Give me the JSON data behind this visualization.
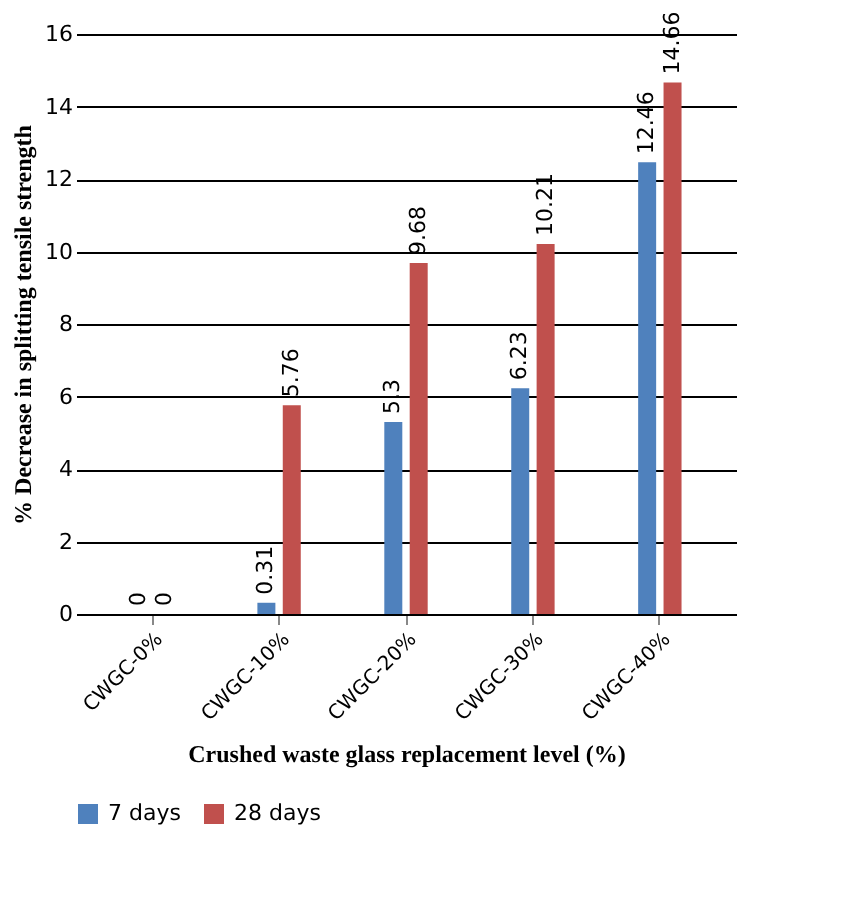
{
  "chart_data": {
    "type": "bar",
    "xlabel": "Crushed waste glass replacement level (%)",
    "ylabel": "% Decrease in splitting tensile strength",
    "categories": [
      "CWGC-0%",
      "CWGC-10%",
      "CWGC-20%",
      "CWGC-30%",
      "CWGC-40%"
    ],
    "series": [
      {
        "name": "7 days",
        "color": "#4f81bd",
        "values": [
          0,
          0.31,
          5.3,
          6.23,
          12.46
        ]
      },
      {
        "name": "28 days",
        "color": "#c0504d",
        "values": [
          0,
          5.76,
          9.68,
          10.21,
          14.66
        ]
      }
    ],
    "ylim": [
      0,
      16
    ],
    "yticks": [
      0,
      2,
      4,
      6,
      8,
      10,
      12,
      14,
      16
    ],
    "grid": "y",
    "legend": "bottom",
    "data_labels": true
  }
}
